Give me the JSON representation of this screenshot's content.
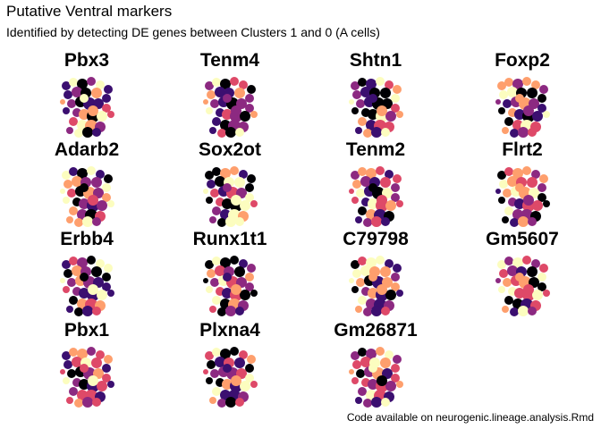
{
  "figure": {
    "title": "Putative Ventral markers",
    "subtitle": "Identified by detecting DE genes between Clusters 1 and 0 (A cells)",
    "caption": "Code available on neurogenic.lineage.analysis.Rmd"
  },
  "chart_data": {
    "type": "scatter",
    "title": "Putative Ventral markers",
    "subtitle": "Identified by detecting DE genes between Clusters 1 and 0 (A cells)",
    "xlabel": "",
    "ylabel": "",
    "axes_visible": false,
    "grid": false,
    "legend": "none",
    "layout": "4x4 facet grid of feature plots",
    "colormap": [
      "#000004",
      "#3b0f70",
      "#8c2981",
      "#de4968",
      "#fe9f6d",
      "#fcfdbf"
    ],
    "panels": [
      {
        "gene": "Pbx3"
      },
      {
        "gene": "Tenm4"
      },
      {
        "gene": "Shtn1"
      },
      {
        "gene": "Foxp2"
      },
      {
        "gene": "Adarb2"
      },
      {
        "gene": "Sox2ot"
      },
      {
        "gene": "Tenm2"
      },
      {
        "gene": "Flrt2"
      },
      {
        "gene": "Erbb4"
      },
      {
        "gene": "Runx1t1"
      },
      {
        "gene": "C79798"
      },
      {
        "gene": "Gm5607"
      },
      {
        "gene": "Pbx1"
      },
      {
        "gene": "Plxna4"
      },
      {
        "gene": "Gm26871"
      }
    ]
  }
}
